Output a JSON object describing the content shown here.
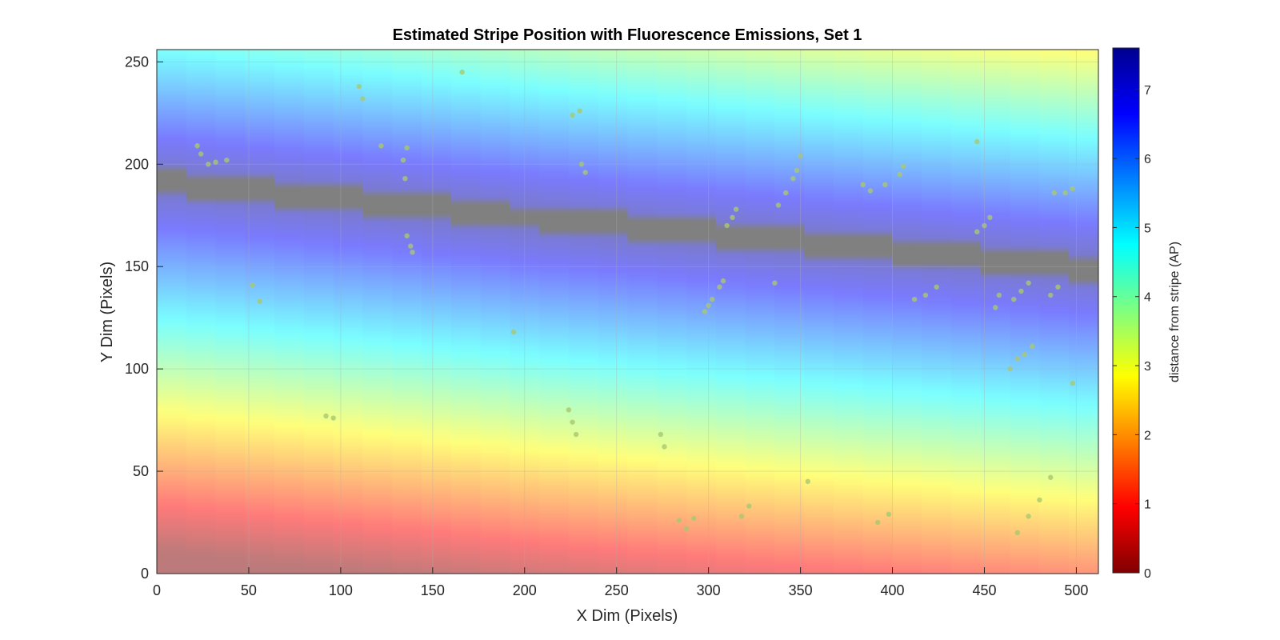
{
  "chart_data": {
    "type": "heatmap",
    "title": "Estimated Stripe Position with Fluorescence Emissions, Set 1",
    "xlabel": "X Dim (Pixels)",
    "ylabel": "Y Dim (Pixels)",
    "xlim": [
      0,
      512
    ],
    "ylim": [
      0,
      256
    ],
    "xticks": [
      0,
      50,
      100,
      150,
      200,
      250,
      300,
      350,
      400,
      450,
      500
    ],
    "yticks": [
      0,
      50,
      100,
      150,
      200,
      250
    ],
    "grid": true,
    "colormap": "jet",
    "colorbar": {
      "label": "distance from stripe (AP)",
      "range": [
        0,
        7.6
      ],
      "ticks": [
        0,
        1,
        2,
        3,
        4,
        5,
        6,
        7
      ],
      "location": "right"
    },
    "stripe_centerline": [
      {
        "x": 0,
        "y": 192
      },
      {
        "x": 100,
        "y": 183
      },
      {
        "x": 200,
        "y": 174
      },
      {
        "x": 300,
        "y": 166
      },
      {
        "x": 400,
        "y": 158
      },
      {
        "x": 512,
        "y": 149
      }
    ],
    "emission_points": [
      {
        "x": 22,
        "y": 209
      },
      {
        "x": 24,
        "y": 205
      },
      {
        "x": 28,
        "y": 200
      },
      {
        "x": 32,
        "y": 201
      },
      {
        "x": 38,
        "y": 202
      },
      {
        "x": 52,
        "y": 141
      },
      {
        "x": 56,
        "y": 133
      },
      {
        "x": 92,
        "y": 77
      },
      {
        "x": 96,
        "y": 76
      },
      {
        "x": 110,
        "y": 238
      },
      {
        "x": 112,
        "y": 232
      },
      {
        "x": 122,
        "y": 209
      },
      {
        "x": 134,
        "y": 202
      },
      {
        "x": 136,
        "y": 208
      },
      {
        "x": 135,
        "y": 193
      },
      {
        "x": 136,
        "y": 165
      },
      {
        "x": 138,
        "y": 160
      },
      {
        "x": 139,
        "y": 157
      },
      {
        "x": 166,
        "y": 245
      },
      {
        "x": 194,
        "y": 118
      },
      {
        "x": 224,
        "y": 80
      },
      {
        "x": 226,
        "y": 74
      },
      {
        "x": 228,
        "y": 68
      },
      {
        "x": 226,
        "y": 224
      },
      {
        "x": 230,
        "y": 226
      },
      {
        "x": 231,
        "y": 200
      },
      {
        "x": 233,
        "y": 196
      },
      {
        "x": 274,
        "y": 68
      },
      {
        "x": 276,
        "y": 62
      },
      {
        "x": 284,
        "y": 26
      },
      {
        "x": 288,
        "y": 22
      },
      {
        "x": 292,
        "y": 27
      },
      {
        "x": 298,
        "y": 128
      },
      {
        "x": 300,
        "y": 131
      },
      {
        "x": 302,
        "y": 134
      },
      {
        "x": 306,
        "y": 140
      },
      {
        "x": 308,
        "y": 143
      },
      {
        "x": 310,
        "y": 170
      },
      {
        "x": 313,
        "y": 174
      },
      {
        "x": 315,
        "y": 178
      },
      {
        "x": 318,
        "y": 28
      },
      {
        "x": 322,
        "y": 33
      },
      {
        "x": 336,
        "y": 142
      },
      {
        "x": 338,
        "y": 180
      },
      {
        "x": 342,
        "y": 186
      },
      {
        "x": 346,
        "y": 193
      },
      {
        "x": 348,
        "y": 197
      },
      {
        "x": 350,
        "y": 204
      },
      {
        "x": 354,
        "y": 45
      },
      {
        "x": 384,
        "y": 190
      },
      {
        "x": 388,
        "y": 187
      },
      {
        "x": 396,
        "y": 190
      },
      {
        "x": 392,
        "y": 25
      },
      {
        "x": 398,
        "y": 29
      },
      {
        "x": 404,
        "y": 195
      },
      {
        "x": 406,
        "y": 199
      },
      {
        "x": 412,
        "y": 134
      },
      {
        "x": 418,
        "y": 136
      },
      {
        "x": 424,
        "y": 140
      },
      {
        "x": 446,
        "y": 167
      },
      {
        "x": 450,
        "y": 170
      },
      {
        "x": 453,
        "y": 174
      },
      {
        "x": 456,
        "y": 130
      },
      {
        "x": 458,
        "y": 136
      },
      {
        "x": 464,
        "y": 100
      },
      {
        "x": 468,
        "y": 105
      },
      {
        "x": 472,
        "y": 107
      },
      {
        "x": 476,
        "y": 111
      },
      {
        "x": 466,
        "y": 134
      },
      {
        "x": 470,
        "y": 138
      },
      {
        "x": 474,
        "y": 142
      },
      {
        "x": 468,
        "y": 20
      },
      {
        "x": 474,
        "y": 28
      },
      {
        "x": 480,
        "y": 36
      },
      {
        "x": 486,
        "y": 47
      },
      {
        "x": 446,
        "y": 211
      },
      {
        "x": 488,
        "y": 186
      },
      {
        "x": 494,
        "y": 186
      },
      {
        "x": 498,
        "y": 188
      },
      {
        "x": 486,
        "y": 136
      },
      {
        "x": 490,
        "y": 140
      },
      {
        "x": 498,
        "y": 93
      }
    ]
  },
  "colors": {
    "stripe_core": "#808080",
    "point_fill": "#a8c870",
    "axis": "#262626",
    "grid": "#b0b0b0"
  }
}
